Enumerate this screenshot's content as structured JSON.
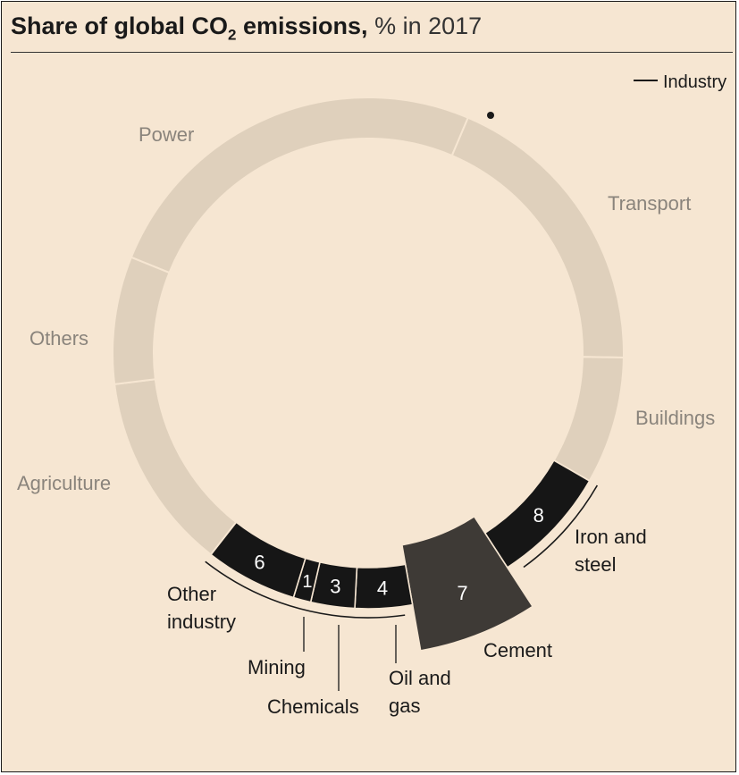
{
  "title": {
    "main": "Share of global CO",
    "sub": "2",
    "rest": " emissions,",
    "suffix": " % in 2017"
  },
  "legend": {
    "label": "Industry"
  },
  "colors": {
    "background": "#f6e6d2",
    "other_sectors": "#dfd0bc",
    "industry": "#161616",
    "cement": "#3e3a36",
    "other_label": "#8a847c",
    "industry_label": "#1a1a1a"
  },
  "chart_data": {
    "type": "donut",
    "title": "Share of global CO2 emissions, % in 2017",
    "unit": "%",
    "segments": [
      {
        "name": "Power",
        "value": null,
        "group": "other",
        "label_lines": [
          "Power"
        ]
      },
      {
        "name": "Transport",
        "value": null,
        "group": "other",
        "label_lines": [
          "Transport"
        ]
      },
      {
        "name": "Buildings",
        "value": null,
        "group": "other",
        "label_lines": [
          "Buildings"
        ]
      },
      {
        "name": "Iron and steel",
        "value": 8,
        "group": "industry",
        "label_lines": [
          "Iron and",
          "steel"
        ]
      },
      {
        "name": "Cement",
        "value": 7,
        "group": "industry",
        "highlight": true,
        "label_lines": [
          "Cement"
        ]
      },
      {
        "name": "Oil and gas",
        "value": 4,
        "group": "industry",
        "label_lines": [
          "Oil and",
          "gas"
        ]
      },
      {
        "name": "Chemicals",
        "value": 3,
        "group": "industry",
        "label_lines": [
          "Chemicals"
        ]
      },
      {
        "name": "Mining",
        "value": 1,
        "group": "industry",
        "label_lines": [
          "Mining"
        ]
      },
      {
        "name": "Other industry",
        "value": 6,
        "group": "industry",
        "label_lines": [
          "Other",
          "industry"
        ]
      },
      {
        "name": "Agriculture",
        "value": null,
        "group": "other",
        "label_lines": [
          "Agriculture"
        ]
      },
      {
        "name": "Others",
        "value": null,
        "group": "other",
        "label_lines": [
          "Others"
        ]
      }
    ]
  }
}
